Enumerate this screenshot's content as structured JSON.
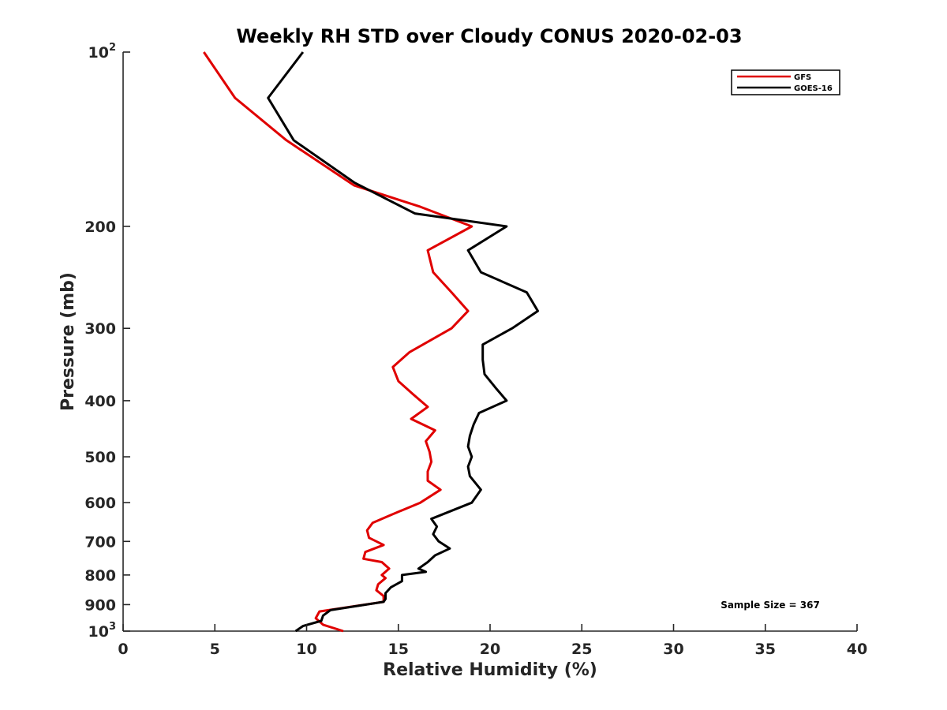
{
  "chart_data": {
    "type": "line",
    "title": "Weekly RH STD over Cloudy CONUS 2020-02-03",
    "xlabel": "Relative Humidity (%)",
    "ylabel": "Pressure (mb)",
    "xlim": [
      0,
      40
    ],
    "ylim": [
      100,
      1000
    ],
    "y_scale": "log",
    "y_reversed": true,
    "x_ticks": [
      {
        "value": 0,
        "label": "0"
      },
      {
        "value": 5,
        "label": "5"
      },
      {
        "value": 10,
        "label": "10"
      },
      {
        "value": 15,
        "label": "15"
      },
      {
        "value": 20,
        "label": "20"
      },
      {
        "value": 25,
        "label": "25"
      },
      {
        "value": 30,
        "label": "30"
      },
      {
        "value": 35,
        "label": "35"
      },
      {
        "value": 40,
        "label": "40"
      }
    ],
    "y_ticks": [
      {
        "value": 100,
        "base": "10",
        "exp": "2"
      },
      {
        "value": 200,
        "label": "200"
      },
      {
        "value": 300,
        "label": "300"
      },
      {
        "value": 400,
        "label": "400"
      },
      {
        "value": 500,
        "label": "500"
      },
      {
        "value": 600,
        "label": "600"
      },
      {
        "value": 700,
        "label": "700"
      },
      {
        "value": 800,
        "label": "800"
      },
      {
        "value": 900,
        "label": "900"
      },
      {
        "value": 1000,
        "base": "10",
        "exp": "3"
      }
    ],
    "grid": false,
    "legend_position": "top-right",
    "annotation": "Sample Size = 367",
    "series": [
      {
        "name": "GFS",
        "color": "#e00000",
        "points": [
          [
            4.4,
            100
          ],
          [
            6.1,
            120
          ],
          [
            8.9,
            142
          ],
          [
            12.6,
            170
          ],
          [
            16.2,
            185
          ],
          [
            19.0,
            200
          ],
          [
            16.6,
            220
          ],
          [
            16.9,
            240
          ],
          [
            17.9,
            260
          ],
          [
            18.8,
            280
          ],
          [
            17.9,
            300
          ],
          [
            15.6,
            330
          ],
          [
            14.7,
            350
          ],
          [
            15.0,
            370
          ],
          [
            15.8,
            390
          ],
          [
            16.6,
            410
          ],
          [
            15.7,
            430
          ],
          [
            17.0,
            450
          ],
          [
            16.5,
            470
          ],
          [
            16.7,
            490
          ],
          [
            16.8,
            510
          ],
          [
            16.6,
            530
          ],
          [
            16.6,
            550
          ],
          [
            17.3,
            570
          ],
          [
            16.2,
            600
          ],
          [
            14.6,
            630
          ],
          [
            13.6,
            650
          ],
          [
            13.3,
            670
          ],
          [
            13.4,
            690
          ],
          [
            14.2,
            710
          ],
          [
            13.2,
            730
          ],
          [
            13.1,
            750
          ],
          [
            14.1,
            760
          ],
          [
            14.5,
            780
          ],
          [
            14.1,
            800
          ],
          [
            14.3,
            810
          ],
          [
            13.9,
            830
          ],
          [
            13.8,
            850
          ],
          [
            14.2,
            870
          ],
          [
            14.2,
            890
          ],
          [
            10.7,
            925
          ],
          [
            10.5,
            950
          ],
          [
            10.9,
            975
          ],
          [
            12.0,
            1000
          ]
        ]
      },
      {
        "name": "GOES-16",
        "color": "#000000",
        "points": [
          [
            9.8,
            100
          ],
          [
            7.9,
            120
          ],
          [
            9.3,
            142
          ],
          [
            12.6,
            168
          ],
          [
            15.9,
            190
          ],
          [
            20.9,
            200
          ],
          [
            18.8,
            220
          ],
          [
            19.5,
            240
          ],
          [
            22.0,
            260
          ],
          [
            22.6,
            280
          ],
          [
            21.2,
            300
          ],
          [
            19.6,
            320
          ],
          [
            19.6,
            340
          ],
          [
            19.7,
            360
          ],
          [
            20.3,
            380
          ],
          [
            20.9,
            400
          ],
          [
            19.4,
            420
          ],
          [
            19.1,
            440
          ],
          [
            18.9,
            460
          ],
          [
            18.8,
            480
          ],
          [
            19.0,
            500
          ],
          [
            18.8,
            520
          ],
          [
            18.9,
            540
          ],
          [
            19.5,
            570
          ],
          [
            19.0,
            600
          ],
          [
            16.8,
            640
          ],
          [
            17.1,
            660
          ],
          [
            16.9,
            680
          ],
          [
            17.2,
            700
          ],
          [
            17.8,
            720
          ],
          [
            17.0,
            740
          ],
          [
            16.6,
            760
          ],
          [
            16.1,
            780
          ],
          [
            16.5,
            790
          ],
          [
            15.2,
            800
          ],
          [
            15.2,
            820
          ],
          [
            14.6,
            840
          ],
          [
            14.3,
            860
          ],
          [
            14.3,
            880
          ],
          [
            14.2,
            890
          ],
          [
            11.3,
            920
          ],
          [
            10.9,
            940
          ],
          [
            10.8,
            960
          ],
          [
            9.8,
            980
          ],
          [
            9.4,
            1000
          ]
        ]
      }
    ]
  }
}
